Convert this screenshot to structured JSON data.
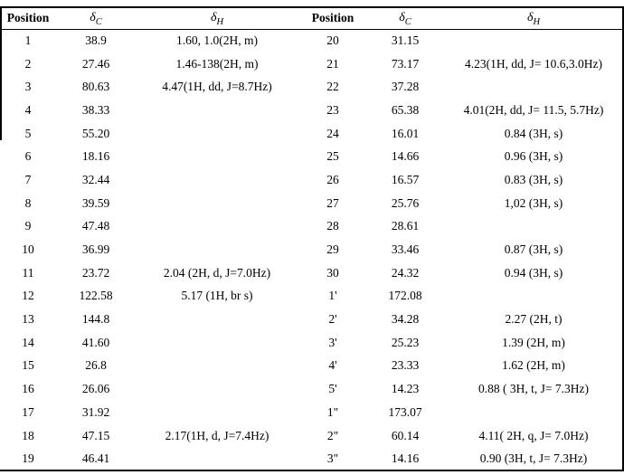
{
  "page": {
    "background": "#ffffff",
    "text_color": "#000000",
    "rule_color": "#000000"
  },
  "table": {
    "columns": [
      {
        "label": "Position"
      },
      {
        "symbol": "δ",
        "sub": "C"
      },
      {
        "symbol": "δ",
        "sub": "H"
      },
      {
        "label": "Position"
      },
      {
        "symbol": "δ",
        "sub": "C"
      },
      {
        "symbol": "δ",
        "sub": "H"
      }
    ],
    "rows": [
      {
        "lpos": "1",
        "lc": "38.9",
        "lh": "1.60, 1.0(2H, m)",
        "rpos": "20",
        "rc": "31.15",
        "rh": ""
      },
      {
        "lpos": "2",
        "lc": "27.46",
        "lh": "1.46-138(2H, m)",
        "rpos": "21",
        "rc": "73.17",
        "rh": "4.23(1H, dd, J= 10.6,3.0Hz)"
      },
      {
        "lpos": "3",
        "lc": "80.63",
        "lh": "4.47(1H, dd, J=8.7Hz)",
        "rpos": "22",
        "rc": "37.28",
        "rh": ""
      },
      {
        "lpos": "4",
        "lc": "38.33",
        "lh": "",
        "rpos": "23",
        "rc": "65.38",
        "rh": "4.01(2H, dd, J= 11.5, 5.7Hz)"
      },
      {
        "lpos": "5",
        "lc": "55.20",
        "lh": "",
        "rpos": "24",
        "rc": "16.01",
        "rh": "0.84 (3H, s)"
      },
      {
        "lpos": "6",
        "lc": "18.16",
        "lh": "",
        "rpos": "25",
        "rc": "14.66",
        "rh": "0.96 (3H, s)"
      },
      {
        "lpos": "7",
        "lc": "32.44",
        "lh": "",
        "rpos": "26",
        "rc": "16.57",
        "rh": "0.83 (3H, s)"
      },
      {
        "lpos": "8",
        "lc": "39.59",
        "lh": "",
        "rpos": "27",
        "rc": "25.76",
        "rh": "1,02 (3H, s)"
      },
      {
        "lpos": "9",
        "lc": "47.48",
        "lh": "",
        "rpos": "28",
        "rc": "28.61",
        "rh": ""
      },
      {
        "lpos": "10",
        "lc": "36.99",
        "lh": "",
        "rpos": "29",
        "rc": "33.46",
        "rh": "0.87 (3H, s)"
      },
      {
        "lpos": "11",
        "lc": "23.72",
        "lh": "2.04 (2H, d, J=7.0Hz)",
        "rpos": "30",
        "rc": "24.32",
        "rh": "0.94 (3H, s)"
      },
      {
        "lpos": "12",
        "lc": "122.58",
        "lh": "5.17 (1H, br s)",
        "rpos": "1'",
        "rc": "172.08",
        "rh": ""
      },
      {
        "lpos": "13",
        "lc": "144.8",
        "lh": "",
        "rpos": "2'",
        "rc": "34.28",
        "rh": "2.27 (2H, t)"
      },
      {
        "lpos": "14",
        "lc": "41.60",
        "lh": "",
        "rpos": "3'",
        "rc": "25.23",
        "rh": "1.39 (2H, m)"
      },
      {
        "lpos": "15",
        "lc": "26.8",
        "lh": "",
        "rpos": "4'",
        "rc": "23.33",
        "rh": "1.62 (2H, m)"
      },
      {
        "lpos": "16",
        "lc": "26.06",
        "lh": "",
        "rpos": "5'",
        "rc": "14.23",
        "rh": "0.88 ( 3H, t, J= 7.3Hz)"
      },
      {
        "lpos": "17",
        "lc": "31.92",
        "lh": "",
        "rpos": "1\"",
        "rc": "173.07",
        "rh": ""
      },
      {
        "lpos": "18",
        "lc": "47.15",
        "lh": "2.17(1H, d, J=7.4Hz)",
        "rpos": "2\"",
        "rc": "60.14",
        "rh": "4.11( 2H, q, J= 7.0Hz)"
      },
      {
        "lpos": "19",
        "lc": "46.41",
        "lh": "",
        "rpos": "3\"",
        "rc": "14.16",
        "rh": "0.90 (3H, t, J= 7.3Hz)"
      }
    ]
  }
}
